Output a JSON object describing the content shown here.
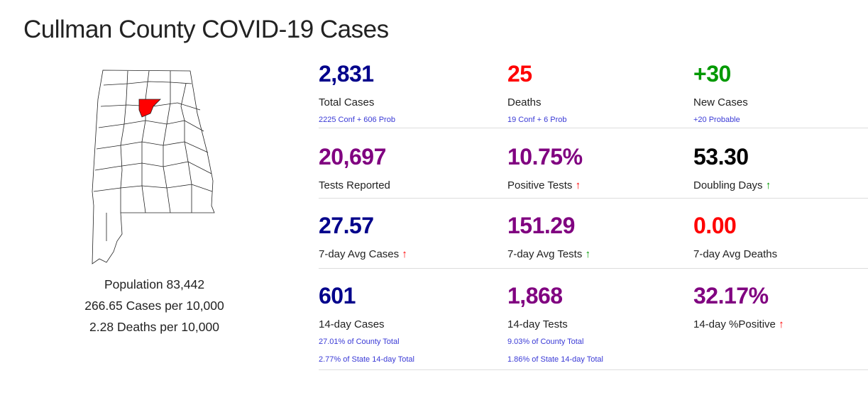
{
  "title": "Cullman County COVID-19 Cases",
  "colors": {
    "navy": "#00008b",
    "red": "#ff0000",
    "green": "#009900",
    "purple": "#800080",
    "black": "#000000",
    "sub": "#3a3ad6"
  },
  "population": {
    "pop": "Population 83,442",
    "cases_per": "266.65 Cases per 10,000",
    "deaths_per": "2.28 Deaths per 10,000"
  },
  "stats": {
    "total_cases": {
      "value": "2,831",
      "label": "Total Cases",
      "sub": "2225 Conf + 606 Prob"
    },
    "deaths": {
      "value": "25",
      "label": "Deaths",
      "sub": "19 Conf + 6 Prob"
    },
    "new_cases": {
      "value": "+30",
      "label": "New Cases",
      "sub": "+20 Probable"
    },
    "tests": {
      "value": "20,697",
      "label": "Tests Reported"
    },
    "positive": {
      "value": "10.75%",
      "label": "Positive Tests",
      "trend": "up"
    },
    "doubling": {
      "value": "53.30",
      "label": "Doubling Days",
      "trend": "up"
    },
    "avg_cases": {
      "value": "27.57",
      "label": "7-day Avg Cases",
      "trend": "up"
    },
    "avg_tests": {
      "value": "151.29",
      "label": "7-day Avg Tests",
      "trend": "up"
    },
    "avg_deaths": {
      "value": "0.00",
      "label": "7-day Avg Deaths"
    },
    "cases14": {
      "value": "601",
      "label": "14-day Cases",
      "sub1": "27.01% of County Total",
      "sub2": "2.77% of State 14-day Total"
    },
    "tests14": {
      "value": "1,868",
      "label": "14-day Tests",
      "sub1": "9.03% of County Total",
      "sub2": "1.86% of State 14-day Total"
    },
    "pos14": {
      "value": "32.17%",
      "label": "14-day %Positive",
      "trend": "up"
    }
  },
  "arrow": "🡑"
}
